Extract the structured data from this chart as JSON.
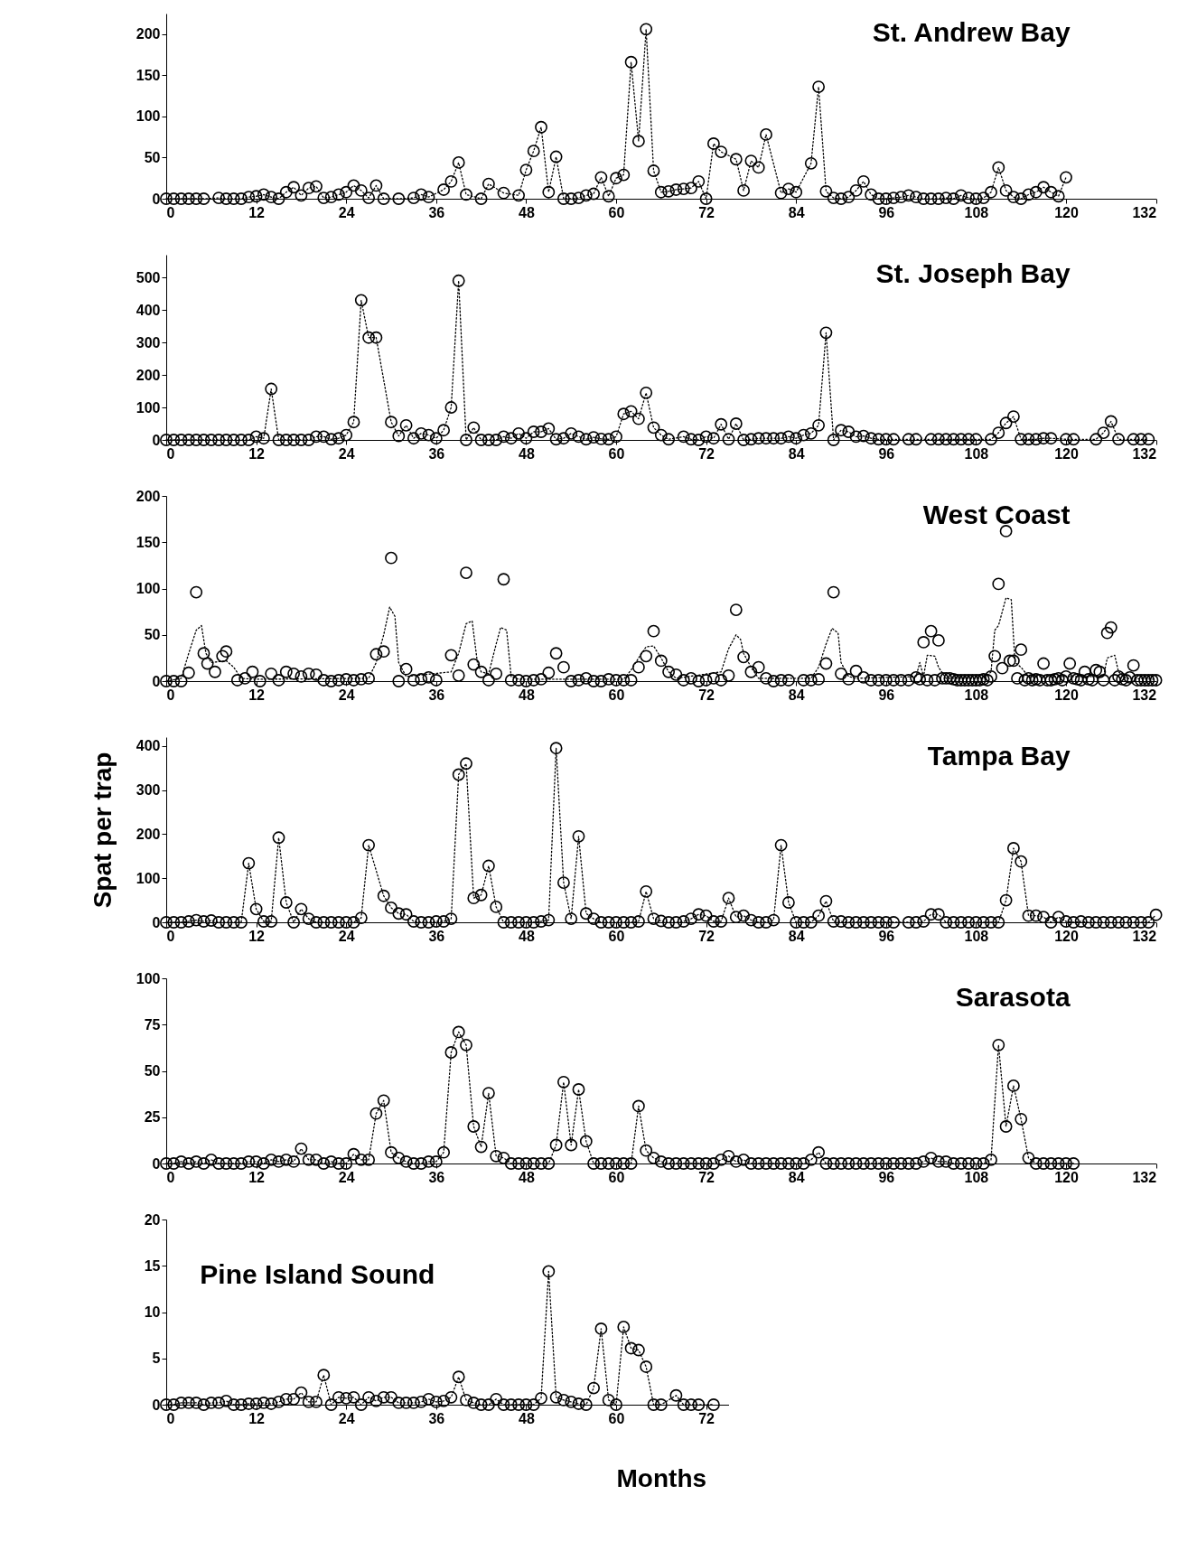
{
  "chart_data": [
    {
      "type": "line",
      "title": "St. Andrew Bay",
      "xlim": [
        0,
        132
      ],
      "xticks": [
        0,
        12,
        24,
        36,
        48,
        60,
        72,
        84,
        96,
        108,
        120,
        132
      ],
      "ylim": [
        0,
        225
      ],
      "yticks": [
        0,
        50,
        100,
        150,
        200
      ],
      "grid": false,
      "legend": false,
      "marker": "circle",
      "line_style": "dotted",
      "series": [
        {
          "color": "#000000",
          "x": [
            0,
            1,
            2,
            3,
            4,
            5,
            7,
            8,
            9,
            10,
            11,
            12,
            13,
            14,
            15,
            16,
            17,
            18,
            19,
            20,
            21,
            22,
            23,
            24,
            25,
            26,
            27,
            28,
            29,
            31,
            33,
            34,
            35,
            37,
            38,
            39,
            40,
            42,
            43,
            45,
            47,
            48,
            49,
            50,
            51,
            52,
            53,
            54,
            55,
            56,
            57,
            58,
            59,
            60,
            61,
            62,
            63,
            64,
            65,
            66,
            67,
            68,
            69,
            70,
            71,
            72,
            73,
            74,
            76,
            77,
            78,
            79,
            80,
            82,
            83,
            84,
            86,
            87,
            88,
            89,
            90,
            91,
            92,
            93,
            94,
            95,
            96,
            97,
            98,
            99,
            100,
            101,
            102,
            103,
            104,
            105,
            106,
            107,
            108,
            109,
            110,
            111,
            112,
            113,
            114,
            115,
            116,
            117,
            118,
            119,
            120
          ],
          "values": [
            0,
            0,
            0,
            0,
            0,
            0,
            1,
            0,
            0,
            0,
            2,
            3,
            5,
            2,
            0,
            8,
            14,
            4,
            13,
            15,
            1,
            2,
            5,
            8,
            16,
            10,
            1,
            16,
            0,
            0,
            1,
            5,
            2,
            11,
            21,
            44,
            5,
            0,
            18,
            7,
            4,
            35,
            58,
            87,
            8,
            51,
            0,
            0,
            1,
            4,
            6,
            26,
            3,
            25,
            29,
            166,
            70,
            206,
            34,
            8,
            9,
            11,
            12,
            13,
            21,
            0,
            67,
            57,
            48,
            10,
            46,
            38,
            78,
            7,
            12,
            8,
            43,
            136,
            9,
            1,
            0,
            2,
            10,
            21,
            5,
            0,
            0,
            1,
            2,
            4,
            2,
            0,
            0,
            0,
            1,
            0,
            4,
            1,
            0,
            1,
            8,
            38,
            10,
            2,
            0,
            5,
            8,
            14,
            8,
            3,
            26
          ]
        }
      ]
    },
    {
      "type": "line",
      "title": "St. Joseph Bay",
      "xlim": [
        0,
        132
      ],
      "xticks": [
        0,
        12,
        24,
        36,
        48,
        60,
        72,
        84,
        96,
        108,
        120,
        132
      ],
      "ylim": [
        0,
        570
      ],
      "yticks": [
        0,
        100,
        200,
        300,
        400,
        500
      ],
      "grid": false,
      "legend": false,
      "marker": "circle",
      "line_style": "dotted",
      "series": [
        {
          "color": "#000000",
          "x": [
            0,
            1,
            2,
            3,
            4,
            5,
            6,
            7,
            8,
            9,
            10,
            11,
            12,
            13,
            14,
            15,
            16,
            17,
            18,
            19,
            20,
            21,
            22,
            23,
            24,
            25,
            26,
            27,
            28,
            30,
            31,
            32,
            33,
            34,
            35,
            36,
            37,
            38,
            39,
            40,
            41,
            42,
            43,
            44,
            45,
            46,
            47,
            48,
            49,
            50,
            51,
            52,
            53,
            54,
            55,
            56,
            57,
            58,
            59,
            60,
            61,
            62,
            63,
            64,
            65,
            66,
            67,
            69,
            70,
            71,
            72,
            73,
            74,
            75,
            76,
            77,
            78,
            79,
            80,
            81,
            82,
            83,
            84,
            85,
            86,
            87,
            88,
            89,
            90,
            91,
            92,
            93,
            94,
            95,
            96,
            97,
            99,
            100,
            102,
            103,
            104,
            105,
            106,
            107,
            108,
            110,
            111,
            112,
            113,
            114,
            115,
            116,
            117,
            118,
            120,
            121,
            124,
            125,
            126,
            127,
            129,
            130,
            131
          ],
          "values": [
            0,
            0,
            0,
            0,
            0,
            0,
            0,
            0,
            0,
            0,
            0,
            0,
            10,
            5,
            157,
            0,
            0,
            0,
            0,
            0,
            10,
            10,
            2,
            5,
            15,
            55,
            430,
            315,
            315,
            55,
            12,
            45,
            5,
            20,
            15,
            5,
            30,
            100,
            490,
            0,
            38,
            0,
            0,
            0,
            10,
            5,
            20,
            5,
            25,
            25,
            35,
            2,
            5,
            20,
            10,
            2,
            8,
            3,
            2,
            10,
            80,
            88,
            65,
            145,
            38,
            15,
            2,
            10,
            2,
            0,
            10,
            5,
            48,
            2,
            50,
            0,
            2,
            5,
            5,
            5,
            5,
            10,
            5,
            15,
            20,
            45,
            330,
            0,
            30,
            25,
            10,
            12,
            5,
            2,
            2,
            2,
            2,
            2,
            2,
            2,
            2,
            2,
            2,
            2,
            2,
            2,
            22,
            52,
            72,
            2,
            2,
            2,
            5,
            5,
            2,
            2,
            2,
            22,
            57,
            2,
            2,
            2,
            2
          ]
        }
      ]
    },
    {
      "type": "scatter",
      "title": "West Coast",
      "xlim": [
        0,
        132
      ],
      "xticks": [
        0,
        12,
        24,
        36,
        48,
        60,
        72,
        84,
        96,
        108,
        120,
        132
      ],
      "ylim": [
        0,
        200
      ],
      "yticks": [
        0,
        50,
        100,
        150,
        200
      ],
      "grid": false,
      "legend": false,
      "marker": "circle",
      "series": [
        {
          "color": "#000000",
          "x": [
            0,
            1,
            2,
            3,
            4,
            5,
            5.5,
            6.5,
            7.5,
            8,
            9.5,
            10.5,
            11.5,
            12.5,
            14,
            15,
            16,
            17,
            18,
            19,
            20,
            21,
            22,
            23,
            24,
            25,
            26,
            27,
            28,
            29,
            30,
            31,
            32,
            33,
            34,
            35,
            36,
            38,
            39,
            40,
            41,
            42,
            43,
            44,
            45,
            46,
            47,
            48,
            49,
            50,
            51,
            52,
            53,
            54,
            55,
            56,
            57,
            58,
            59,
            60,
            61,
            62,
            63,
            64,
            65,
            66,
            67,
            68,
            69,
            70,
            71,
            72,
            73,
            74,
            75,
            76,
            77,
            78,
            79,
            80,
            81,
            82,
            83,
            85,
            86,
            87,
            88,
            89,
            90,
            91,
            92,
            93,
            94,
            95,
            96,
            97,
            98,
            99,
            100,
            100.5,
            101,
            101.5,
            102,
            102.5,
            103,
            103.5,
            104,
            104.5,
            105,
            105.5,
            106,
            106.5,
            107,
            107.5,
            108,
            108.5,
            109,
            109.5,
            110,
            110.5,
            111,
            111.5,
            112,
            112.5,
            113,
            113.5,
            114,
            114.5,
            115,
            115.5,
            116,
            116.5,
            117,
            117.5,
            118,
            118.5,
            119,
            119.5,
            120,
            120.5,
            121,
            121.5,
            122,
            122.5,
            123,
            123.5,
            124,
            124.5,
            125,
            125.5,
            126,
            126.5,
            127,
            127.5,
            128,
            128.5,
            129,
            129.5,
            130,
            130.5,
            131,
            131.5,
            132
          ],
          "values": [
            0,
            0,
            0,
            9,
            96,
            30,
            19,
            10,
            27,
            32,
            1,
            3,
            10,
            0,
            8,
            1,
            10,
            8,
            5,
            8,
            7,
            1,
            0,
            1,
            2,
            1,
            2,
            3,
            29,
            32,
            133,
            0,
            13,
            1,
            2,
            4,
            1,
            28,
            6,
            117,
            18,
            10,
            1,
            8,
            110,
            1,
            1,
            0,
            1,
            2,
            9,
            30,
            15,
            0,
            1,
            3,
            0,
            0,
            2,
            1,
            1,
            1,
            15,
            27,
            54,
            22,
            10,
            7,
            1,
            3,
            0,
            1,
            3,
            1,
            6,
            77,
            26,
            10,
            15,
            3,
            0,
            1,
            1,
            1,
            1,
            2,
            19,
            96,
            8,
            2,
            11,
            4,
            1,
            1,
            1,
            1,
            1,
            1,
            4,
            2,
            42,
            1,
            54,
            1,
            44,
            3,
            3,
            3,
            2,
            1,
            1,
            1,
            1,
            1,
            1,
            1,
            2,
            1,
            5,
            27,
            105,
            14,
            162,
            22,
            22,
            3,
            34,
            1,
            3,
            1,
            2,
            1,
            19,
            1,
            1,
            2,
            3,
            1,
            5,
            19,
            3,
            2,
            1,
            10,
            2,
            1,
            12,
            10,
            1,
            52,
            58,
            1,
            5,
            2,
            1,
            4,
            17,
            1,
            1,
            1,
            1,
            1,
            1
          ]
        },
        {
          "type": "line",
          "marker": "none",
          "line_style": "dotted",
          "color": "#000000",
          "x": [
            0,
            2,
            3,
            4,
            4.7,
            5.3,
            6,
            8,
            9,
            10,
            12,
            27,
            28,
            29,
            29.8,
            30.5,
            31,
            32,
            38,
            39,
            40,
            40.8,
            41.5,
            42,
            43,
            44,
            44.6,
            45.4,
            46,
            47,
            61,
            62,
            63,
            64,
            65,
            66,
            67,
            68,
            74,
            75,
            76,
            76.6,
            77,
            78,
            79,
            86,
            87,
            88,
            88.8,
            89.6,
            90,
            91,
            92,
            100,
            100.5,
            101,
            101.5,
            102.5,
            103,
            104,
            109,
            110,
            110.5,
            111,
            112,
            112.7,
            113.2,
            114,
            115,
            124,
            125,
            125.5,
            126.5,
            127,
            128,
            132
          ],
          "values": [
            0,
            3,
            30,
            55,
            60,
            30,
            20,
            22,
            15,
            3,
            2,
            3,
            20,
            50,
            80,
            70,
            20,
            5,
            10,
            30,
            62,
            65,
            20,
            10,
            8,
            40,
            58,
            55,
            5,
            2,
            2,
            12,
            25,
            37,
            38,
            25,
            10,
            3,
            10,
            35,
            50,
            45,
            30,
            15,
            3,
            3,
            15,
            40,
            57,
            52,
            20,
            5,
            3,
            5,
            20,
            5,
            28,
            27,
            15,
            3,
            3,
            10,
            55,
            60,
            90,
            88,
            20,
            15,
            5,
            5,
            5,
            25,
            28,
            10,
            3,
            2
          ]
        }
      ]
    },
    {
      "type": "line",
      "title": "Tampa Bay",
      "xlim": [
        0,
        132
      ],
      "xticks": [
        0,
        12,
        24,
        36,
        48,
        60,
        72,
        84,
        96,
        108,
        120,
        132
      ],
      "ylim": [
        0,
        420
      ],
      "yticks": [
        0,
        100,
        200,
        300,
        400
      ],
      "ylabel": "Spat per trap",
      "grid": false,
      "legend": false,
      "marker": "circle",
      "line_style": "dotted",
      "series": [
        {
          "color": "#000000",
          "x": [
            0,
            1,
            2,
            3,
            4,
            5,
            6,
            7,
            8,
            9,
            10,
            11,
            12,
            13,
            14,
            15,
            16,
            17,
            18,
            19,
            20,
            21,
            22,
            23,
            24,
            25,
            26,
            27,
            29,
            30,
            31,
            32,
            33,
            34,
            35,
            36,
            37,
            38,
            39,
            40,
            41,
            42,
            43,
            44,
            45,
            46,
            47,
            48,
            49,
            50,
            51,
            52,
            53,
            54,
            55,
            56,
            57,
            58,
            59,
            60,
            61,
            62,
            63,
            64,
            65,
            66,
            67,
            68,
            69,
            70,
            71,
            72,
            73,
            74,
            75,
            76,
            77,
            78,
            79,
            80,
            81,
            82,
            83,
            84,
            85,
            86,
            87,
            88,
            89,
            90,
            91,
            92,
            93,
            94,
            95,
            96,
            97,
            99,
            100,
            101,
            102,
            103,
            104,
            105,
            106,
            107,
            108,
            109,
            110,
            111,
            112,
            113,
            114,
            115,
            116,
            117,
            118,
            119,
            120,
            121,
            122,
            123,
            124,
            125,
            126,
            127,
            128,
            129,
            130,
            131,
            132
          ],
          "values": [
            0,
            0,
            0,
            2,
            5,
            2,
            4,
            0,
            0,
            0,
            0,
            134,
            30,
            2,
            2,
            192,
            45,
            0,
            30,
            8,
            0,
            0,
            0,
            0,
            0,
            0,
            10,
            175,
            60,
            33,
            20,
            18,
            2,
            0,
            0,
            2,
            2,
            8,
            335,
            360,
            55,
            62,
            128,
            35,
            0,
            0,
            0,
            0,
            0,
            2,
            5,
            395,
            90,
            8,
            195,
            20,
            8,
            0,
            0,
            0,
            0,
            0,
            2,
            70,
            8,
            3,
            0,
            0,
            2,
            8,
            18,
            15,
            2,
            2,
            55,
            12,
            15,
            5,
            0,
            0,
            5,
            175,
            45,
            0,
            0,
            0,
            15,
            48,
            2,
            2,
            0,
            0,
            0,
            0,
            0,
            0,
            0,
            0,
            0,
            2,
            18,
            18,
            0,
            0,
            0,
            0,
            0,
            0,
            0,
            0,
            50,
            168,
            138,
            15,
            15,
            12,
            0,
            12,
            2,
            0,
            2,
            0,
            0,
            0,
            0,
            0,
            0,
            0,
            0,
            0,
            17
          ]
        }
      ]
    },
    {
      "type": "line",
      "title": "Sarasota",
      "xlim": [
        0,
        132
      ],
      "xticks": [
        0,
        12,
        24,
        36,
        48,
        60,
        72,
        84,
        96,
        108,
        120,
        132
      ],
      "ylim": [
        0,
        100
      ],
      "yticks": [
        0,
        25,
        50,
        75,
        100
      ],
      "grid": false,
      "legend": false,
      "marker": "circle",
      "line_style": "dotted",
      "series": [
        {
          "color": "#000000",
          "x": [
            0,
            1,
            2,
            3,
            4,
            5,
            6,
            7,
            8,
            9,
            10,
            11,
            12,
            13,
            14,
            15,
            16,
            17,
            18,
            19,
            20,
            21,
            22,
            23,
            24,
            25,
            26,
            27,
            28,
            29,
            30,
            31,
            32,
            33,
            34,
            35,
            36,
            37,
            38,
            39,
            40,
            41,
            42,
            43,
            44,
            45,
            46,
            47,
            48,
            49,
            50,
            51,
            52,
            53,
            54,
            55,
            56,
            57,
            58,
            59,
            60,
            61,
            62,
            63,
            64,
            65,
            66,
            67,
            68,
            69,
            70,
            71,
            72,
            73,
            74,
            75,
            76,
            77,
            78,
            79,
            80,
            81,
            82,
            83,
            84,
            85,
            86,
            87,
            88,
            89,
            90,
            91,
            92,
            93,
            94,
            95,
            96,
            97,
            98,
            99,
            100,
            101,
            102,
            103,
            104,
            105,
            106,
            107,
            108,
            109,
            110,
            111,
            112,
            113,
            114,
            115,
            116,
            117,
            118,
            119,
            120,
            121
          ],
          "values": [
            0,
            0,
            1,
            0,
            1,
            0,
            2,
            0,
            0,
            0,
            0,
            1,
            1,
            0,
            2,
            1,
            2,
            1,
            8,
            2,
            2,
            0,
            1,
            0,
            0,
            5,
            2,
            2,
            27,
            34,
            6,
            3,
            1,
            0,
            0,
            1,
            1,
            6,
            60,
            71,
            64,
            20,
            9,
            38,
            4,
            3,
            0,
            0,
            0,
            0,
            0,
            0,
            10,
            44,
            10,
            40,
            12,
            0,
            0,
            0,
            0,
            0,
            0,
            31,
            7,
            3,
            1,
            0,
            0,
            0,
            0,
            0,
            0,
            0,
            2,
            4,
            1,
            2,
            0,
            0,
            0,
            0,
            0,
            0,
            0,
            0,
            2,
            6,
            0,
            0,
            0,
            0,
            0,
            0,
            0,
            0,
            0,
            0,
            0,
            0,
            0,
            1,
            3,
            1,
            1,
            0,
            0,
            0,
            0,
            0,
            2,
            64,
            20,
            42,
            24,
            3,
            0,
            0,
            0,
            0,
            0,
            0
          ]
        }
      ]
    },
    {
      "type": "line",
      "title": "Pine Island Sound",
      "xlim": [
        0,
        75
      ],
      "xticks": [
        0,
        12,
        24,
        36,
        48,
        60,
        72
      ],
      "ylim": [
        0,
        20
      ],
      "yticks": [
        0,
        5,
        10,
        15,
        20
      ],
      "xlabel": "Months",
      "grid": false,
      "legend": false,
      "marker": "circle",
      "line_style": "dotted",
      "series": [
        {
          "color": "#000000",
          "x": [
            0,
            1,
            2,
            3,
            4,
            5,
            6,
            7,
            8,
            9,
            10,
            11,
            12,
            13,
            14,
            15,
            16,
            17,
            18,
            19,
            20,
            21,
            22,
            23,
            24,
            25,
            26,
            27,
            28,
            29,
            30,
            31,
            32,
            33,
            34,
            35,
            36,
            37,
            38,
            39,
            40,
            41,
            42,
            43,
            44,
            45,
            46,
            47,
            48,
            49,
            50,
            51,
            52,
            53,
            54,
            55,
            56,
            57,
            58,
            59,
            60,
            61,
            62,
            63,
            64,
            65,
            66,
            68,
            69,
            70,
            71,
            73
          ],
          "values": [
            0,
            0,
            0.2,
            0.2,
            0.2,
            0,
            0.2,
            0.2,
            0.4,
            0,
            0,
            0.1,
            0.1,
            0.2,
            0.1,
            0.3,
            0.6,
            0.6,
            1.3,
            0.3,
            0.3,
            3.2,
            0,
            0.8,
            0.7,
            0.8,
            0,
            0.8,
            0.4,
            0.8,
            0.8,
            0.2,
            0.2,
            0.2,
            0.3,
            0.6,
            0.3,
            0.4,
            0.8,
            3,
            0.5,
            0.2,
            0,
            0,
            0.6,
            0,
            0,
            0,
            0,
            0,
            0.7,
            14.4,
            0.8,
            0.5,
            0.3,
            0.1,
            0,
            1.8,
            8.2,
            0.5,
            0,
            8.4,
            6.1,
            5.9,
            4.1,
            0,
            0,
            1,
            0,
            0,
            0,
            0
          ]
        }
      ]
    }
  ]
}
